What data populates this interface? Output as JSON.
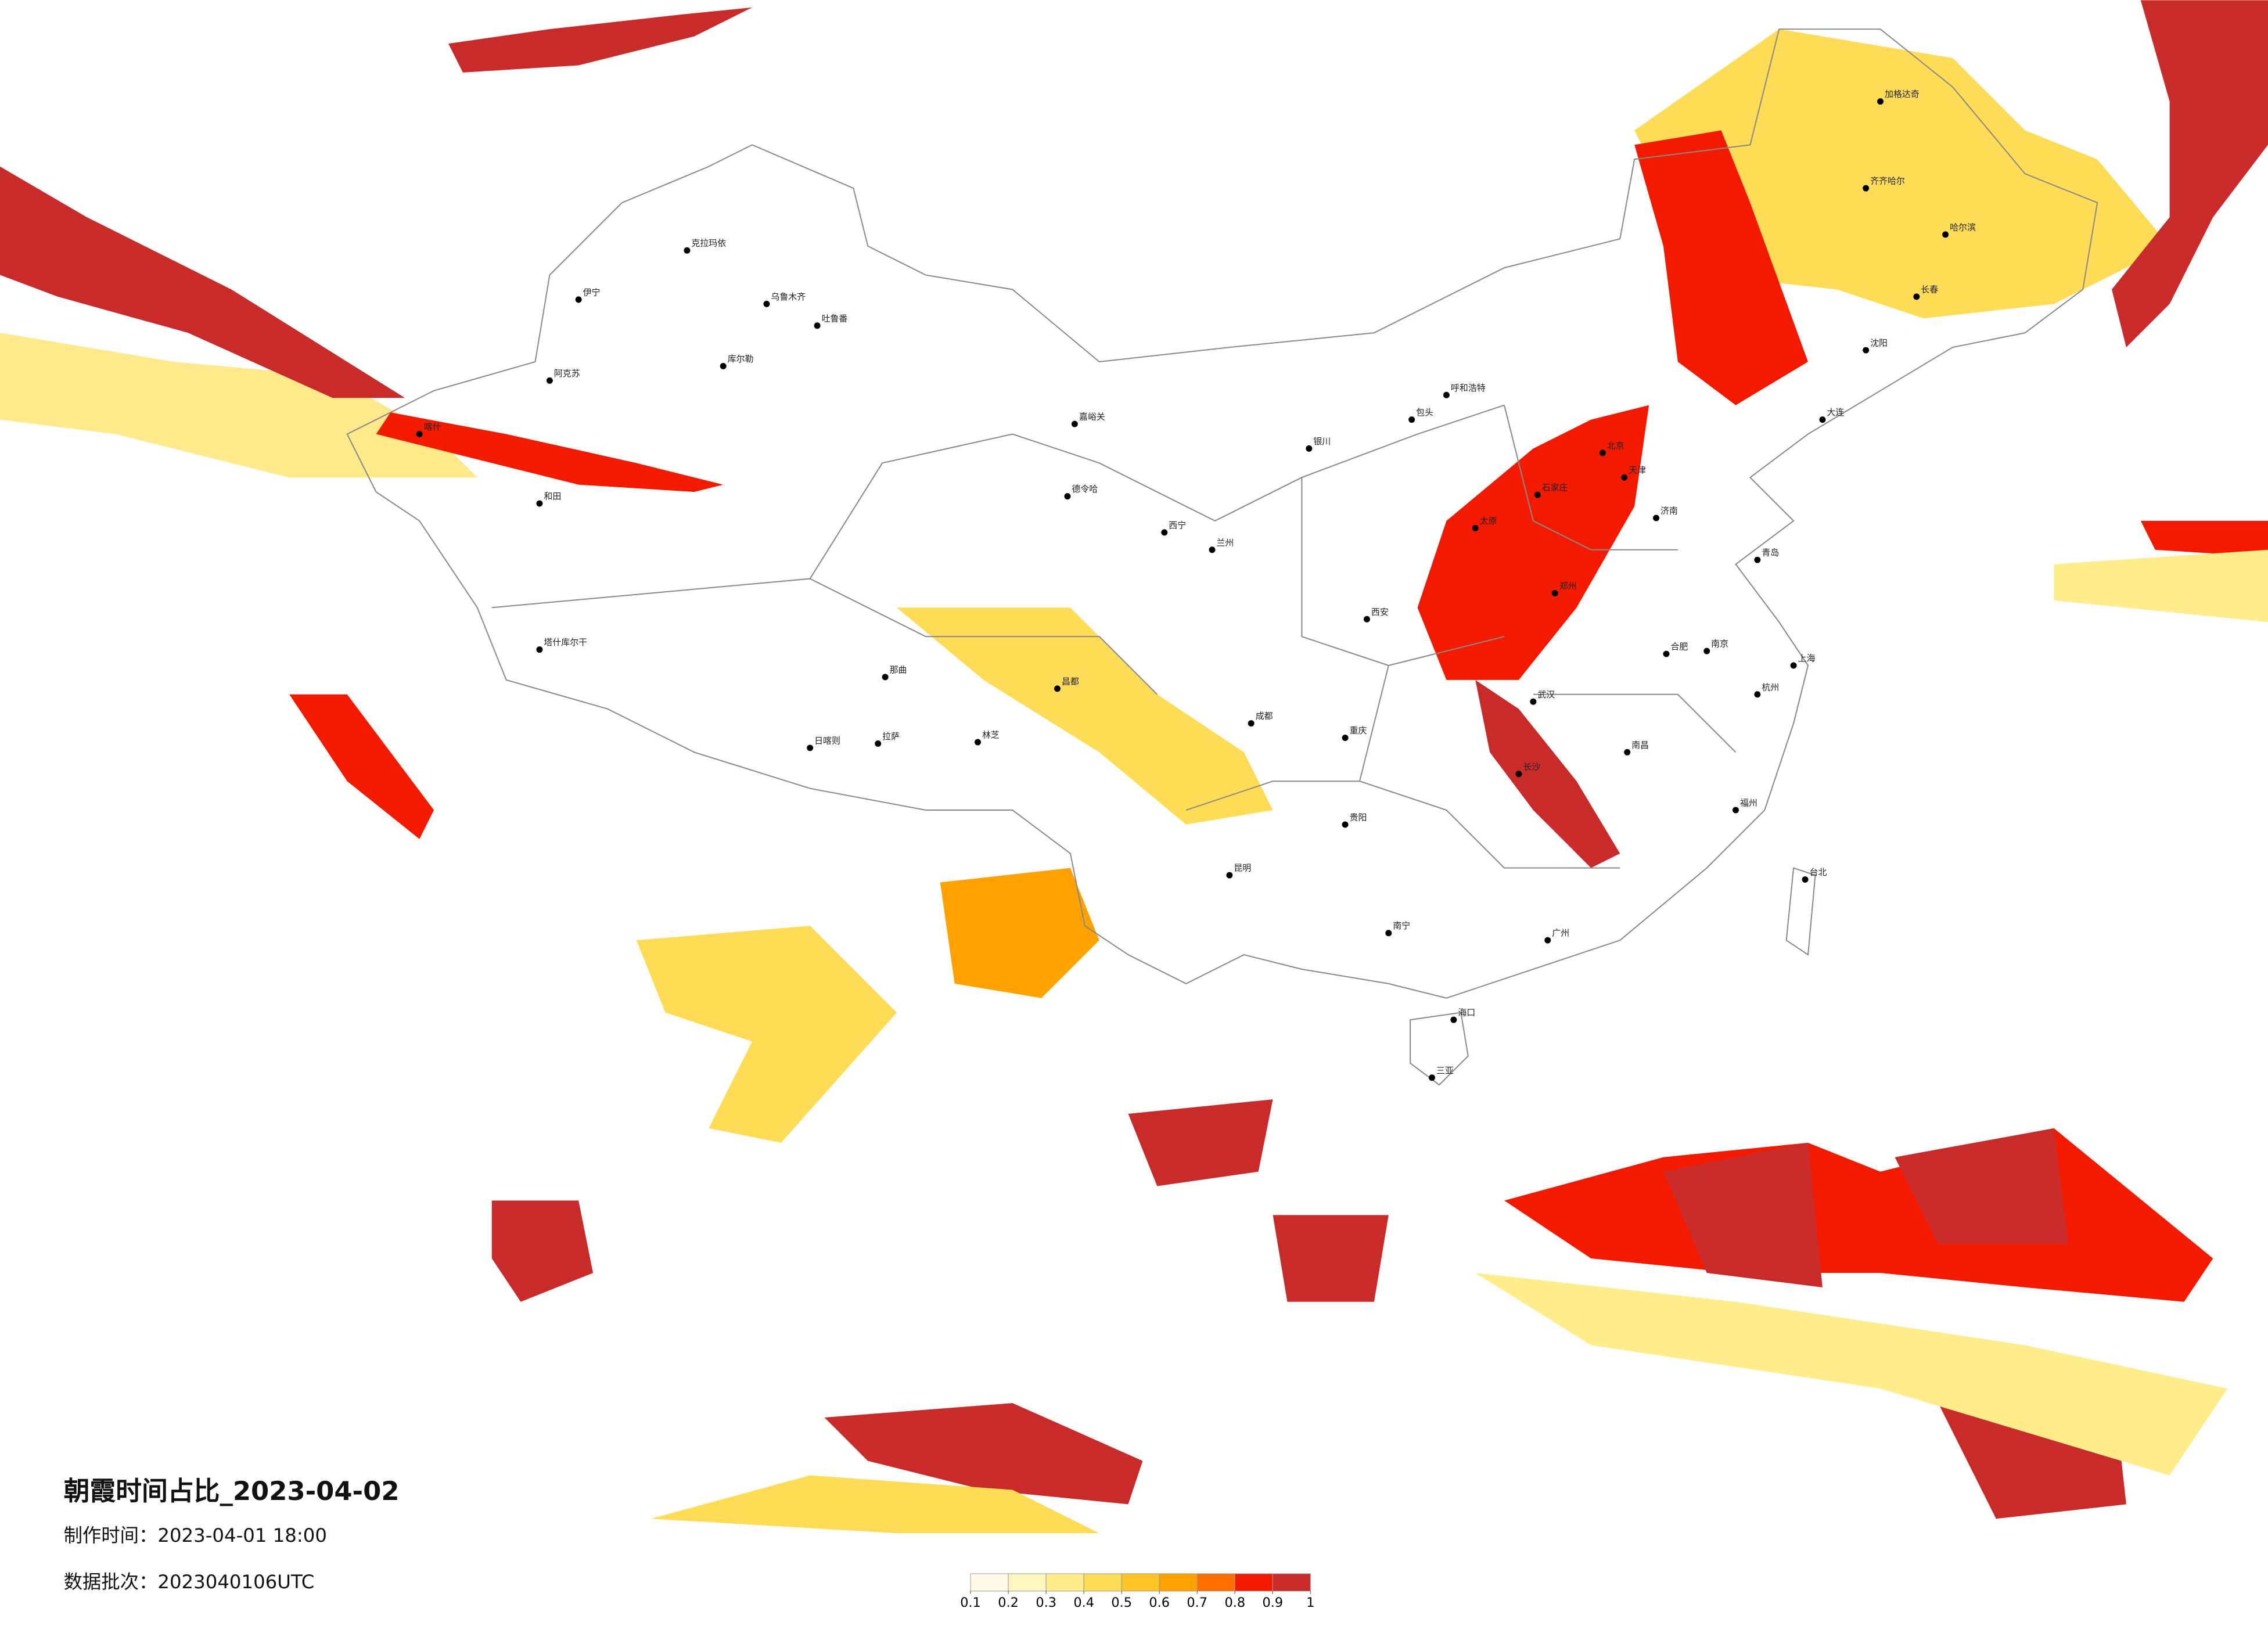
{
  "title": "朝霞时间占比_2023-04-02",
  "made_time": "制作时间：2023-04-01 18:00",
  "batch": "数据批次：2023040106UTC",
  "colorbar": {
    "ticks": [
      0.1,
      0.2,
      0.3,
      0.4,
      0.5,
      0.6,
      0.7,
      0.8,
      0.9,
      1
    ],
    "colors": [
      "#fffbe6",
      "#fff5bf",
      "#ffec8a",
      "#ffdc55",
      "#ffc425",
      "#ffa200",
      "#ff6f00",
      "#f41a00",
      "#c92a2a"
    ]
  },
  "cities": [
    "克拉玛依",
    "乌鲁木齐",
    "吐鲁番",
    "伊宁",
    "阿克苏",
    "库尔勒",
    "和田",
    "喀什",
    "塔什库尔干",
    "日喀则",
    "拉萨",
    "林芝",
    "那曲",
    "昌都",
    "德令哈",
    "嘉峪关",
    "西宁",
    "兰州",
    "银川",
    "呼和浩特",
    "包头",
    "北京",
    "天津",
    "石家庄",
    "太原",
    "西安",
    "郑州",
    "济南",
    "青岛",
    "南京",
    "上海",
    "杭州",
    "合肥",
    "武汉",
    "长沙",
    "南昌",
    "福州",
    "台北",
    "广州",
    "南宁",
    "海口",
    "三亚",
    "昆明",
    "贵阳",
    "成都",
    "重庆",
    "哈尔滨",
    "长春",
    "沈阳",
    "大连",
    "齐齐哈尔",
    "加格达奇"
  ]
}
